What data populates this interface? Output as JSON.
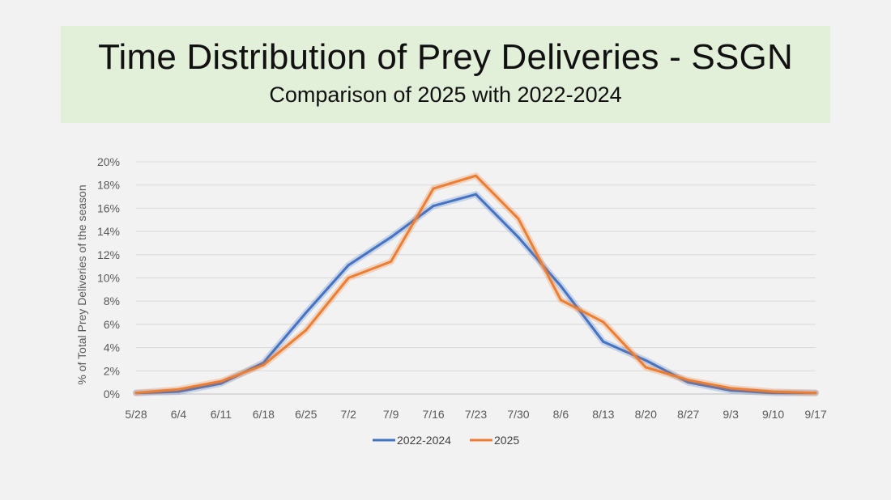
{
  "header": {
    "title": "Time Distribution of Prey Deliveries - SSGN",
    "subtitle": "Comparison of 2025 with 2022-2024"
  },
  "colors": {
    "band": "#e2efd9",
    "series_2022_2024": "#4472c4",
    "series_2025": "#ed7d31",
    "grid": "#d9d9d9"
  },
  "chart_data": {
    "type": "line",
    "title": "Time Distribution of Prey Deliveries - SSGN",
    "subtitle": "Comparison of 2025 with 2022-2024",
    "xlabel": "",
    "ylabel": "% of Total Prey Deliveries of the season",
    "categories": [
      "5/28",
      "6/4",
      "6/11",
      "6/18",
      "6/25",
      "7/2",
      "7/9",
      "7/16",
      "7/23",
      "7/30",
      "8/6",
      "8/13",
      "8/20",
      "8/27",
      "9/3",
      "9/10",
      "9/17"
    ],
    "y_ticks": [
      "0%",
      "2%",
      "4%",
      "6%",
      "8%",
      "10%",
      "12%",
      "14%",
      "16%",
      "18%",
      "20%"
    ],
    "ylim": [
      0,
      20
    ],
    "grid": true,
    "legend_position": "bottom",
    "series": [
      {
        "name": "2022-2024",
        "color": "#4472c4",
        "values": [
          0.1,
          0.2,
          0.9,
          2.7,
          7.0,
          11.1,
          13.5,
          16.2,
          17.2,
          13.5,
          9.3,
          4.5,
          2.9,
          1.0,
          0.3,
          0.1,
          0.1
        ]
      },
      {
        "name": "2025",
        "color": "#ed7d31",
        "values": [
          0.1,
          0.4,
          1.1,
          2.5,
          5.5,
          10.0,
          11.4,
          17.7,
          18.8,
          15.1,
          8.1,
          6.2,
          2.3,
          1.2,
          0.5,
          0.2,
          0.1
        ]
      }
    ]
  }
}
